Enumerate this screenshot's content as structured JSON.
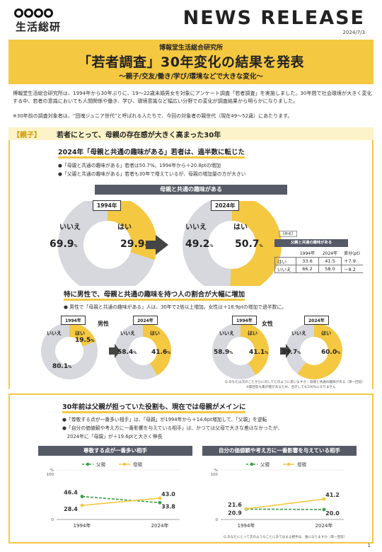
{
  "header": {
    "logo_text": "生活総研",
    "news_release": "NEWS RELEASE",
    "date": "2024/7/3"
  },
  "banner": {
    "org": "博報堂生活総合研究所",
    "title": "「若者調査」30年変化の結果を発表",
    "subtitle": "～親子/交友/働き/学び/環境などで大きな変化～"
  },
  "intro": {
    "text": "博報堂生活総合研究所は、1994年から30年ぶりに、19～22歳未婚男女を対象にアンケート調査「若者調査」を実施しました。30年間で社会環境が大きく変化する中、若者の意識においても人間関係や働き、学び、環境意識など幅広い分野での変化が調査結果から明らかになりました。",
    "note": "※30年前の調査対象者は、“団塊ジュニア世代”と呼ばれる人たちで、今回の対象者の親世代（現在49～52歳）にあたります。"
  },
  "section1": {
    "tag": "【親子】",
    "heading": "若者にとって、母親の存在感が大きく高まった30年",
    "subtitle1": "2024年「母親と共通の趣味がある」若者は、過半数に転じた",
    "bullets1": [
      "●「母親と共通の趣味がある」若者は50.7%。1994年から＋20.8ptの増加",
      "●「父親と共通の趣味がある」若者も30年で増えているが、母親の増加量の方が大きい"
    ],
    "bar_label": "母親と共通の趣味がある",
    "year_1994": "1994年",
    "year_2024": "2024年",
    "label_no": "いいえ",
    "label_yes": "はい",
    "pct_sign": "%",
    "pie_1994": {
      "no": "69.9",
      "yes": "29.9"
    },
    "pie_2024": {
      "no": "49.2",
      "yes": "50.7"
    },
    "ref": {
      "tag": "【参考】",
      "bar": "父親と共通の趣味がある",
      "headers": [
        "",
        "1994年",
        "2024年",
        "差分(pt)"
      ],
      "rows": [
        [
          "はい",
          "33.6",
          "41.5",
          "＋7.9"
        ],
        [
          "いいえ",
          "66.2",
          "58.0",
          "－8.2"
        ]
      ]
    },
    "subtitle2": "特に男性で、母親と共通の趣味を持つ人の割合が大幅に増加",
    "bullet2": "● 男性で「母親と共通の趣味がある」人は、30年で2倍以上増加。女性は＋18.9ptの増加で過半数に。",
    "male_label": "男性",
    "female_label": "女性",
    "male_1994": {
      "no": "80.1",
      "yes": "19.5"
    },
    "male_2024": {
      "no": "58.4",
      "yes": "41.6"
    },
    "female_1994": {
      "no": "58.9",
      "yes": "41.1"
    },
    "female_2024": {
      "no": "39.7",
      "yes": "60.0"
    },
    "footnote1": "Q.あなたは次のことがらに対してどのように思いますか：母親と共通の趣味がある（単一回答）",
    "footnote2": "※無回答も集計値があるため、合計しても100%になりません"
  },
  "section2": {
    "subtitle": "30年前は父親が担っていた役割も、現在では母親がメインに",
    "bullets": [
      "●「尊敬する点が一番多い相手」は、「母親」が1994年から＋14.6pt増加して、「父親」を逆転",
      "●「自分の価値観や考え方に一番影響を与えている相手」は、かつては父母で大きな差はなかったが、",
      "　2024年に「母親」が＋19.6ptと大きく伸長"
    ],
    "footnote": "Q.あなたにとって次のようなことにあてはまる相手は、誰になりますか（単一回答）"
  },
  "chart_data": [
    {
      "type": "line",
      "title": "尊敬する点が一番多い相手",
      "x": [
        "1994年",
        "2024年"
      ],
      "ylim": [
        0,
        100
      ],
      "y_unit": "%",
      "y_tick_top": "100",
      "y_tick_bottom": "0",
      "series": [
        {
          "name": "父親",
          "values": [
            46.4,
            33.8
          ],
          "color": "#3a9d4a",
          "dashed": true
        },
        {
          "name": "母親",
          "values": [
            28.4,
            43.0
          ],
          "color": "#f5c842",
          "dashed": false
        }
      ],
      "value_labels": {
        "父親": [
          "46.4",
          "33.8"
        ],
        "母親": [
          "28.4",
          "43.0"
        ]
      }
    },
    {
      "type": "line",
      "title": "自分の価値観や考え方に一番影響を与えている相手",
      "x": [
        "1994年",
        "2024年"
      ],
      "ylim": [
        0,
        100
      ],
      "y_unit": "%",
      "y_tick_top": "100",
      "y_tick_bottom": "0",
      "series": [
        {
          "name": "父親",
          "values": [
            20.9,
            20.0
          ],
          "color": "#3a9d4a",
          "dashed": true
        },
        {
          "name": "母親",
          "values": [
            21.6,
            41.2
          ],
          "color": "#f5c842",
          "dashed": false
        }
      ],
      "value_labels": {
        "父親": [
          "20.9",
          "20.0"
        ],
        "母親": [
          "21.6",
          "41.2"
        ]
      }
    }
  ],
  "page_number": "1",
  "colors": {
    "accent": "#f5c842",
    "dark": "#555a66",
    "pie_grey": "#d6d8dd",
    "father_green": "#3a9d4a"
  }
}
